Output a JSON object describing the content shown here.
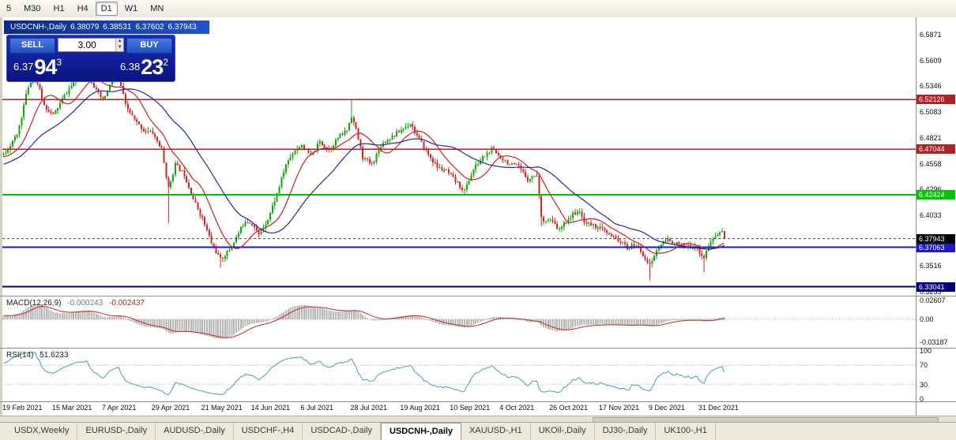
{
  "toolbar": {
    "timeframes": [
      {
        "label": "5",
        "active": false
      },
      {
        "label": "M30",
        "active": false
      },
      {
        "label": "H1",
        "active": false
      },
      {
        "label": "H4",
        "active": false
      },
      {
        "label": "D1",
        "active": true
      },
      {
        "label": "W1",
        "active": false
      },
      {
        "label": "MN",
        "active": false
      }
    ]
  },
  "chart_header": {
    "symbol": "USDCNH-,Daily",
    "open": "6.38079",
    "high": "6.38531",
    "low": "6.37602",
    "close": "6.37943"
  },
  "trade_panel": {
    "sell": "SELL",
    "buy": "BUY",
    "volume": "3.00",
    "bid": {
      "prefix": "6.37",
      "big": "94",
      "sup": "3"
    },
    "ask": {
      "prefix": "6.38",
      "big": "23",
      "sup": "2"
    }
  },
  "price_axis": {
    "ticks": [
      "6.5871",
      "6.5609",
      "6.5346",
      "6.5083",
      "6.4821",
      "6.4558",
      "6.4296",
      "6.4033",
      "6.3771",
      "6.3516",
      "6.3253"
    ]
  },
  "levels": [
    {
      "price": 6.52126,
      "label": "6.52126",
      "color": "#b22222",
      "width": 1.5
    },
    {
      "price": 6.47044,
      "label": "6.47044",
      "color": "#b22222",
      "width": 1.5
    },
    {
      "price": 6.42424,
      "label": "6.42424",
      "color": "#00c400",
      "width": 2
    },
    {
      "price": 6.37063,
      "label": "6.37063",
      "color": "#1a1ac8",
      "width": 2
    },
    {
      "price": 6.33041,
      "label": "6.33041",
      "color": "#000080",
      "width": 2
    }
  ],
  "current_price": {
    "value": 6.37943,
    "label": "6.37943",
    "color": "#000000"
  },
  "indicators": {
    "macd": {
      "name": "MACD(12,26,9)",
      "main_value": "-0.000243",
      "signal_value": "-0.002437",
      "axis_labels": [
        "0.02607",
        "0.00",
        "-0.03187"
      ],
      "axis_values": [
        0.02607,
        0,
        -0.03187
      ]
    },
    "rsi": {
      "name": "RSI(14)",
      "value": "51.6233",
      "axis_labels": [
        "100",
        "70",
        "30",
        "0"
      ],
      "axis_values": [
        100,
        70,
        30,
        0
      ],
      "levels": [
        70,
        30
      ]
    }
  },
  "time_axis": {
    "labels": [
      "19 Feb 2021",
      "15 Mar 2021",
      "7 Apr 2021",
      "29 Apr 2021",
      "21 May 2021",
      "14 Jun 2021",
      "6 Jul 2021",
      "28 Jul 2021",
      "19 Aug 2021",
      "10 Sep 2021",
      "4 Oct 2021",
      "26 Oct 2021",
      "17 Nov 2021",
      "9 Dec 2021",
      "31 Dec 2021"
    ],
    "label_interval_bars": 22
  },
  "tabs": [
    {
      "label": "USDX,Weekly",
      "active": false
    },
    {
      "label": "EURUSD-,Daily",
      "active": false
    },
    {
      "label": "AUDUSD-,Daily",
      "active": false
    },
    {
      "label": "USDCHF-,H4",
      "active": false
    },
    {
      "label": "USDCAD-,Daily",
      "active": false
    },
    {
      "label": "USDCNH-,Daily",
      "active": true
    },
    {
      "label": "XAUUSD-,H1",
      "active": false
    },
    {
      "label": "UKOil-,Daily",
      "active": false
    },
    {
      "label": "DJ30-,Daily",
      "active": false
    },
    {
      "label": "UK100-,H1",
      "active": false
    }
  ],
  "chart_data": {
    "type": "candlestick",
    "symbol": "USDCNH-",
    "timeframe": "Daily",
    "bars": 320,
    "warmup": 40,
    "bar_step": 2.86,
    "seed": 11,
    "last_close": 6.37943,
    "ylim": [
      6.3213,
      6.6048
    ],
    "macd_ylim": [
      -0.04,
      0.032
    ],
    "ma_fast_period": 13,
    "ma_slow_period": 34,
    "price_path": [
      [
        -40,
        6.43
      ],
      [
        -20,
        6.455
      ],
      [
        0,
        6.465
      ],
      [
        6,
        6.485
      ],
      [
        11,
        6.535
      ],
      [
        14,
        6.545
      ],
      [
        18,
        6.515
      ],
      [
        22,
        6.505
      ],
      [
        27,
        6.525
      ],
      [
        33,
        6.545
      ],
      [
        37,
        6.55
      ],
      [
        41,
        6.53
      ],
      [
        44,
        6.52
      ],
      [
        48,
        6.54
      ],
      [
        51,
        6.545
      ],
      [
        54,
        6.515
      ],
      [
        58,
        6.5
      ],
      [
        62,
        6.49
      ],
      [
        66,
        6.487
      ],
      [
        70,
        6.47
      ],
      [
        73,
        6.43
      ],
      [
        76,
        6.455
      ],
      [
        80,
        6.445
      ],
      [
        84,
        6.42
      ],
      [
        88,
        6.4
      ],
      [
        92,
        6.375
      ],
      [
        96,
        6.358
      ],
      [
        100,
        6.368
      ],
      [
        104,
        6.385
      ],
      [
        107,
        6.398
      ],
      [
        110,
        6.395
      ],
      [
        113,
        6.383
      ],
      [
        117,
        6.4
      ],
      [
        121,
        6.425
      ],
      [
        125,
        6.455
      ],
      [
        129,
        6.47
      ],
      [
        132,
        6.475
      ],
      [
        136,
        6.463
      ],
      [
        140,
        6.478
      ],
      [
        144,
        6.47
      ],
      [
        148,
        6.482
      ],
      [
        152,
        6.49
      ],
      [
        154,
        6.505
      ],
      [
        156,
        6.49
      ],
      [
        159,
        6.462
      ],
      [
        163,
        6.455
      ],
      [
        167,
        6.475
      ],
      [
        171,
        6.482
      ],
      [
        176,
        6.49
      ],
      [
        180,
        6.497
      ],
      [
        184,
        6.48
      ],
      [
        188,
        6.465
      ],
      [
        192,
        6.452
      ],
      [
        196,
        6.448
      ],
      [
        198,
        6.443
      ],
      [
        202,
        6.433
      ],
      [
        204,
        6.428
      ],
      [
        208,
        6.45
      ],
      [
        212,
        6.462
      ],
      [
        216,
        6.47
      ],
      [
        220,
        6.463
      ],
      [
        224,
        6.455
      ],
      [
        228,
        6.452
      ],
      [
        232,
        6.44
      ],
      [
        236,
        6.445
      ],
      [
        238,
        6.4
      ],
      [
        242,
        6.398
      ],
      [
        246,
        6.388
      ],
      [
        250,
        6.4
      ],
      [
        254,
        6.408
      ],
      [
        258,
        6.395
      ],
      [
        262,
        6.392
      ],
      [
        264,
        6.39
      ],
      [
        268,
        6.383
      ],
      [
        272,
        6.378
      ],
      [
        276,
        6.37
      ],
      [
        280,
        6.373
      ],
      [
        284,
        6.36
      ],
      [
        286,
        6.352
      ],
      [
        288,
        6.362
      ],
      [
        290,
        6.372
      ],
      [
        294,
        6.378
      ],
      [
        298,
        6.374
      ],
      [
        302,
        6.37
      ],
      [
        306,
        6.372
      ],
      [
        310,
        6.36
      ],
      [
        312,
        6.372
      ],
      [
        315,
        6.382
      ],
      [
        318,
        6.388
      ],
      [
        319,
        6.3794
      ]
    ],
    "wick_events": [
      {
        "bar": 14,
        "high": 6.562
      },
      {
        "bar": 37,
        "high": 6.571
      },
      {
        "bar": 48,
        "high": 6.553
      },
      {
        "bar": 73,
        "low": 6.395
      },
      {
        "bar": 96,
        "low": 6.35
      },
      {
        "bar": 154,
        "high": 6.5215
      },
      {
        "bar": 204,
        "low": 6.4235
      },
      {
        "bar": 238,
        "low": 6.392
      },
      {
        "bar": 286,
        "low": 6.337
      },
      {
        "bar": 310,
        "low": 6.345
      }
    ],
    "colors": {
      "up": "#0caa0c",
      "down": "#dd2222",
      "ma_fast": "#cc2020",
      "ma_slow": "#202a9e",
      "macd_hist": "#b6b6b6",
      "macd_signal": "#cc2222",
      "rsi": "#4a96c8",
      "current_line": "#444444"
    }
  }
}
